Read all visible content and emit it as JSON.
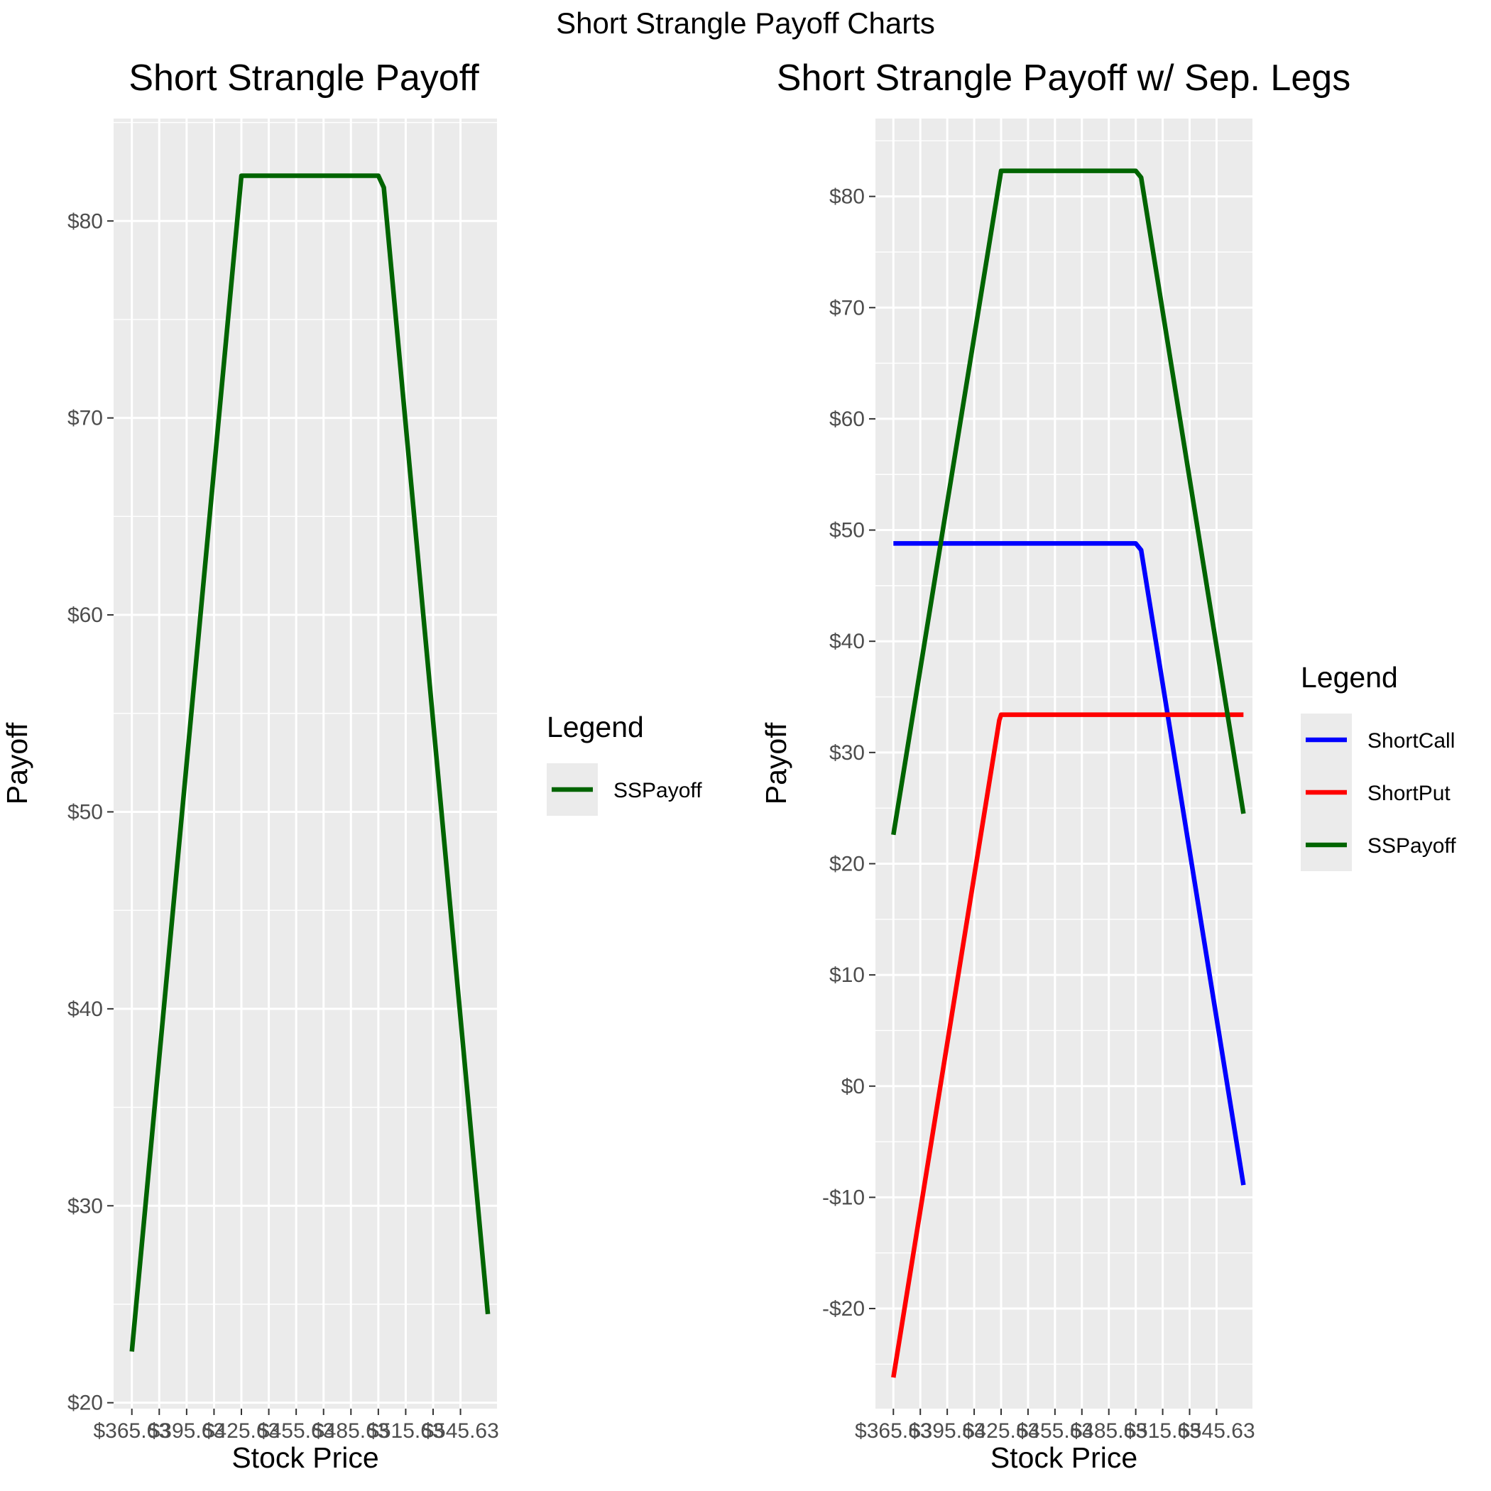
{
  "figure": {
    "title": "Short Strangle Payoff Charts"
  },
  "chart_data": [
    {
      "type": "line",
      "title": "Short Strangle Payoff",
      "xlabel": "Stock Price",
      "ylabel": "Payoff",
      "x_tick_labels": [
        "$365.63",
        "$395.63",
        "$425.63",
        "$455.63",
        "$485.63",
        "$515.63",
        "$545.63"
      ],
      "x_ticks": [
        365.63,
        380.63,
        395.63,
        410.63,
        425.63,
        440.63,
        455.63,
        470.63,
        485.63,
        500.63,
        515.63,
        530.63,
        545.63
      ],
      "xlim": [
        355.63,
        565.63
      ],
      "y_ticks": [
        20,
        30,
        40,
        50,
        60,
        70,
        80
      ],
      "y_tick_labels": [
        "$20",
        "$30",
        "$40",
        "$50",
        "$60",
        "$70",
        "$80"
      ],
      "ylim": [
        19.7,
        85.2
      ],
      "grid": true,
      "legend": {
        "title": "Legend",
        "placement": "right"
      },
      "series": [
        {
          "name": "SSPayoff",
          "color": "#006400",
          "x": [
            365.63,
            425.63,
            500.63,
            503.63,
            560.63
          ],
          "y": [
            22.6,
            82.3,
            82.3,
            81.7,
            24.5
          ]
        }
      ]
    },
    {
      "type": "line",
      "title": "Short Strangle Payoff w/ Sep. Legs",
      "xlabel": "Stock Price",
      "ylabel": "Payoff",
      "x_tick_labels": [
        "$365.63",
        "$395.63",
        "$425.63",
        "$455.63",
        "$485.63",
        "$515.63",
        "$545.63"
      ],
      "x_ticks": [
        365.63,
        380.63,
        395.63,
        410.63,
        425.63,
        440.63,
        455.63,
        470.63,
        485.63,
        500.63,
        515.63,
        530.63,
        545.63
      ],
      "xlim": [
        355.63,
        565.63
      ],
      "y_ticks": [
        -20,
        -10,
        0,
        10,
        20,
        30,
        40,
        50,
        60,
        70,
        80
      ],
      "y_tick_labels": [
        "-$20",
        "-$10",
        "$0",
        "$10",
        "$20",
        "$30",
        "$40",
        "$50",
        "$60",
        "$70",
        "$80"
      ],
      "ylim": [
        -29,
        87
      ],
      "grid": true,
      "legend": {
        "title": "Legend",
        "placement": "right"
      },
      "series": [
        {
          "name": "ShortCall",
          "color": "#0000ff",
          "x": [
            365.63,
            498.63,
            500.63,
            503.63,
            560.63
          ],
          "y": [
            48.8,
            48.8,
            48.8,
            48.2,
            -8.9
          ]
        },
        {
          "name": "ShortPut",
          "color": "#ff0000",
          "x": [
            365.63,
            424.63,
            425.63,
            427.63,
            560.63
          ],
          "y": [
            -26.2,
            32.9,
            33.4,
            33.4,
            33.4
          ]
        },
        {
          "name": "SSPayoff",
          "color": "#006400",
          "x": [
            365.63,
            425.63,
            500.63,
            503.63,
            560.63
          ],
          "y": [
            22.6,
            82.3,
            82.3,
            81.7,
            24.5
          ]
        }
      ]
    }
  ]
}
